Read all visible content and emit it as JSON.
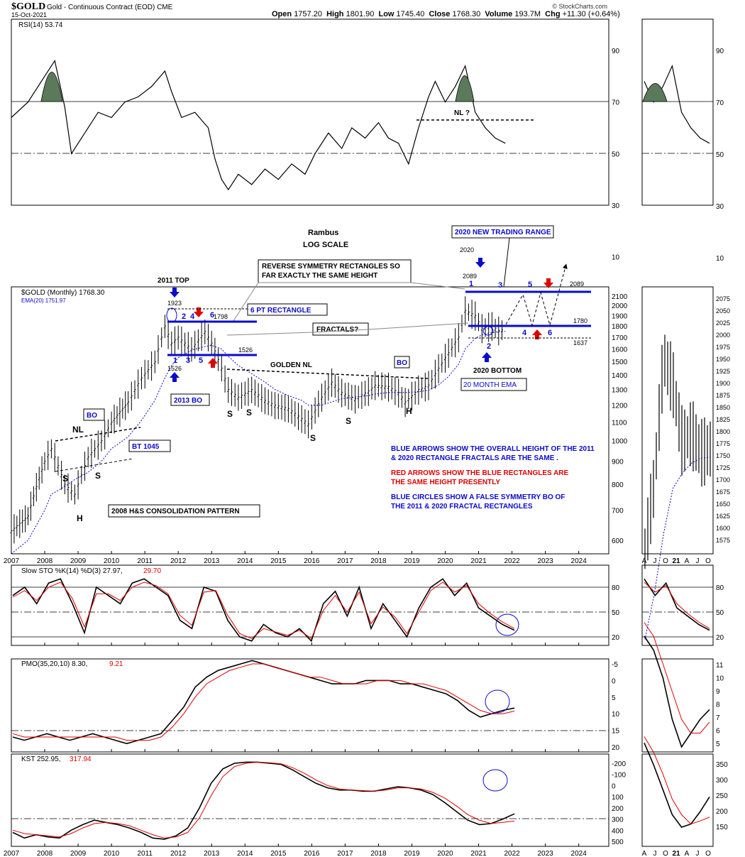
{
  "header": {
    "symbol": "$GOLD",
    "name": "Gold - Continuous Contract (EOD)",
    "exchange": "CME",
    "date": "15-Oct-2021",
    "credit": "© StockCharts.com",
    "quote": {
      "open_label": "Open",
      "open": "1757.20",
      "high_label": "High",
      "high": "1801.90",
      "low_label": "Low",
      "low": "1745.40",
      "close_label": "Close",
      "close": "1768.30",
      "volume_label": "Volume",
      "volume": "193.7M",
      "chg_label": "Chg",
      "chg": "+11.30 (+0.64%)"
    }
  },
  "colors": {
    "blue": "#0a0acc",
    "red": "#e00000",
    "rsi_fill": "#5b7a5b",
    "grid": "#000000",
    "signal": "#e00000"
  },
  "chart_data": [
    {
      "type": "line",
      "panel": "RSI",
      "title": "RSI(14) 53.74",
      "value": 53.74,
      "ylim": [
        0,
        100
      ],
      "ticks": [
        90,
        70,
        50,
        30,
        10
      ],
      "x": [
        2007.0,
        2007.5,
        2008.0,
        2008.3,
        2008.6,
        2008.8,
        2009.2,
        2009.6,
        2010.0,
        2010.4,
        2010.8,
        2011.2,
        2011.6,
        2011.8,
        2012.1,
        2012.5,
        2012.9,
        2013.1,
        2013.3,
        2013.5,
        2013.8,
        2014.2,
        2014.6,
        2015.0,
        2015.4,
        2015.8,
        2016.1,
        2016.5,
        2016.9,
        2017.2,
        2017.6,
        2018.0,
        2018.3,
        2018.6,
        2018.9,
        2019.2,
        2019.5,
        2019.7,
        2020.0,
        2020.3,
        2020.6,
        2020.9,
        2021.2,
        2021.5,
        2021.8
      ],
      "values": [
        64,
        70,
        80,
        86,
        68,
        50,
        58,
        66,
        64,
        70,
        72,
        76,
        82,
        74,
        64,
        66,
        60,
        48,
        40,
        36,
        42,
        38,
        44,
        40,
        46,
        42,
        50,
        58,
        52,
        60,
        56,
        62,
        56,
        54,
        46,
        60,
        72,
        78,
        70,
        76,
        84,
        66,
        60,
        56,
        54
      ],
      "annotations": [
        "NL ?"
      ]
    },
    {
      "type": "line",
      "panel": "price",
      "title": "$GOLD (Monthly) 1768.30",
      "subtitle": "EMA(20) 1751.97",
      "scale": "log",
      "ylim": [
        560,
        2200
      ],
      "ticks": [
        600,
        700,
        800,
        900,
        1000,
        1100,
        1200,
        1300,
        1400,
        1500,
        1600,
        1700,
        1800,
        1900,
        2000,
        2100
      ],
      "x": [
        2007.0,
        2007.5,
        2008.0,
        2008.2,
        2008.6,
        2008.9,
        2009.3,
        2009.7,
        2010.0,
        2010.5,
        2010.9,
        2011.3,
        2011.6,
        2011.8,
        2012.0,
        2012.4,
        2012.8,
        2013.0,
        2013.3,
        2013.5,
        2013.8,
        2014.2,
        2014.6,
        2014.9,
        2015.3,
        2015.7,
        2015.9,
        2016.3,
        2016.6,
        2016.9,
        2017.3,
        2017.7,
        2017.9,
        2018.3,
        2018.6,
        2018.8,
        2019.2,
        2019.5,
        2019.8,
        2020.1,
        2020.4,
        2020.6,
        2020.9,
        2021.1,
        2021.4,
        2021.6,
        2021.8
      ],
      "values": [
        630,
        680,
        900,
        960,
        800,
        760,
        920,
        1000,
        1100,
        1220,
        1380,
        1500,
        1800,
        1650,
        1700,
        1600,
        1750,
        1650,
        1450,
        1300,
        1250,
        1300,
        1230,
        1200,
        1180,
        1120,
        1090,
        1250,
        1350,
        1280,
        1240,
        1290,
        1330,
        1320,
        1280,
        1220,
        1300,
        1330,
        1450,
        1570,
        1700,
        1950,
        1900,
        1780,
        1800,
        1760,
        1768
      ],
      "ema": [
        560,
        600,
        700,
        760,
        790,
        820,
        850,
        900,
        960,
        1020,
        1110,
        1230,
        1380,
        1470,
        1530,
        1590,
        1620,
        1630,
        1600,
        1540,
        1470,
        1410,
        1350,
        1300,
        1260,
        1230,
        1200,
        1200,
        1220,
        1240,
        1250,
        1260,
        1270,
        1280,
        1280,
        1280,
        1285,
        1295,
        1330,
        1390,
        1480,
        1600,
        1690,
        1720,
        1740,
        1750,
        1752
      ],
      "xticks": [
        "2007",
        "2008",
        "2009",
        "2010",
        "2011",
        "2012",
        "2013",
        "2014",
        "2015",
        "2016",
        "2017",
        "2018",
        "2019",
        "2020",
        "2021",
        "2022",
        "2023",
        "2024"
      ],
      "annotations": [
        "Rambus",
        "LOG SCALE",
        "2011 TOP",
        "1923",
        "1798",
        "1526",
        "1526",
        "2020",
        "2089",
        "2089",
        "1780",
        "1637",
        "NL",
        "H",
        "S",
        "S",
        "S",
        "S",
        "S",
        "S",
        "H",
        "GOLDEN NL",
        "2020 BOTTOM"
      ]
    },
    {
      "type": "line",
      "panel": "Slow STO",
      "title": "Slow STO %K(14) %D(3) 27.97, 29.70",
      "ylim": [
        0,
        100
      ],
      "ticks": [
        80,
        50,
        20
      ],
      "series": [
        {
          "name": "%K",
          "values": [
            70,
            80,
            60,
            85,
            90,
            60,
            25,
            80,
            70,
            60,
            85,
            90,
            80,
            70,
            40,
            30,
            80,
            75,
            40,
            20,
            15,
            35,
            25,
            20,
            30,
            15,
            60,
            75,
            45,
            80,
            30,
            60,
            40,
            20,
            55,
            80,
            90,
            70,
            85,
            55,
            45,
            35,
            28
          ]
        },
        {
          "name": "%D",
          "values": [
            68,
            76,
            64,
            80,
            86,
            66,
            32,
            72,
            72,
            64,
            80,
            86,
            82,
            72,
            46,
            34,
            74,
            76,
            46,
            24,
            18,
            30,
            26,
            22,
            28,
            18,
            52,
            70,
            50,
            74,
            36,
            56,
            44,
            24,
            50,
            76,
            86,
            74,
            82,
            60,
            48,
            38,
            30
          ]
        }
      ]
    },
    {
      "type": "line",
      "panel": "PMO",
      "title": "PMO(35,20,10) 8.30, 9.21",
      "ylim": [
        -6,
        21
      ],
      "ticks": [
        20,
        15,
        10,
        5,
        0,
        -5
      ],
      "series": [
        {
          "name": "PMO",
          "values": [
            17,
            18,
            17,
            16,
            17,
            18,
            17,
            16,
            17,
            18,
            19,
            18,
            17,
            16,
            12,
            8,
            2,
            -1,
            -3,
            -4,
            -5,
            -6,
            -5,
            -4,
            -3,
            -2,
            -1,
            0,
            1,
            1,
            1,
            0,
            0,
            0,
            1,
            1,
            2,
            3,
            4,
            6,
            9,
            11,
            10,
            9,
            8.3
          ]
        },
        {
          "name": "Signal",
          "values": [
            16,
            17,
            17,
            17,
            17,
            17,
            17,
            17,
            17,
            17,
            18,
            18,
            18,
            17,
            14,
            10,
            5,
            1,
            -1,
            -3,
            -4,
            -5,
            -5,
            -4,
            -3,
            -2,
            -1,
            -1,
            0,
            1,
            1,
            1,
            0,
            0,
            0,
            1,
            1,
            2,
            3,
            5,
            7,
            9,
            10,
            10,
            9.2
          ]
        }
      ]
    },
    {
      "type": "line",
      "panel": "KST",
      "title": "KST 252.95, 317.94",
      "ylim": [
        -220,
        540
      ],
      "ticks": [
        500,
        400,
        300,
        200,
        100,
        0,
        -100,
        -200
      ],
      "series": [
        {
          "name": "KST",
          "values": [
            420,
            470,
            440,
            460,
            470,
            400,
            350,
            310,
            330,
            350,
            380,
            420,
            470,
            480,
            450,
            380,
            200,
            -20,
            -150,
            -200,
            -210,
            -210,
            -200,
            -190,
            -140,
            -80,
            -20,
            20,
            40,
            40,
            50,
            50,
            30,
            10,
            20,
            40,
            80,
            150,
            230,
            310,
            350,
            340,
            300,
            253
          ]
        },
        {
          "name": "Signal",
          "values": [
            400,
            430,
            440,
            450,
            460,
            430,
            380,
            340,
            330,
            340,
            360,
            400,
            440,
            470,
            460,
            420,
            290,
            90,
            -80,
            -170,
            -200,
            -210,
            -205,
            -195,
            -160,
            -110,
            -50,
            0,
            30,
            40,
            45,
            50,
            40,
            20,
            20,
            30,
            60,
            110,
            180,
            260,
            310,
            340,
            330,
            318
          ]
        }
      ]
    }
  ],
  "right_panel": {
    "months": [
      "A",
      "J",
      "O",
      "21",
      "A",
      "J",
      "O"
    ],
    "rsi_ticks": [
      "90",
      "70",
      "50",
      "30",
      "10"
    ],
    "price_ticks": [
      "2075",
      "2050",
      "2025",
      "2000",
      "1975",
      "1950",
      "1925",
      "1900",
      "1875",
      "1850",
      "1825",
      "1800",
      "1775",
      "1750",
      "1725",
      "1700",
      "1675",
      "1650",
      "1625",
      "1600",
      "1575"
    ],
    "sto_ticks": [
      "80",
      "50",
      "20"
    ],
    "pmo_ticks": [
      "11",
      "10",
      "9",
      "8",
      "7",
      "6",
      "5"
    ],
    "kst_ticks": [
      "350",
      "300",
      "250",
      "200",
      "150"
    ]
  },
  "labels": {
    "rambus": "Rambus",
    "log_scale": "LOG SCALE",
    "new_range": "2020 NEW TRADING RANGE",
    "reverse_sym_1": "REVERSE SYMMETRY RECTANGLES SO",
    "reverse_sym_2": "FAR EXACTLY THE SAME HEIGHT",
    "top_2011": "2011 TOP",
    "six_pt": "6 PT  RECTANGLE",
    "fractals": "FRACTALS?",
    "golden_nl": "GOLDEN NL",
    "bo": "BO",
    "bo2": "BO",
    "bt1045": "BT 1045",
    "bo2013": "2013 BO",
    "ema20": "20 MONTH EMA",
    "bottom2020": "2020 BOTTOM",
    "hs2008": "2008 H&S CONSOLIDATION PATTERN",
    "nl": "NL",
    "nl_q": "NL ?",
    "blue_note_1": "BLUE ARROWS SHOW THE OVERALL HEIGHT OF THE 2011",
    "blue_note_2": "& 2020 RECTANGLE FRACTALS ARE THE SAME .",
    "red_note_1": "RED ARROWS SHOW THE BLUE RECTANGLES ARE",
    "red_note_2": "THE SAME HEIGHT PRESENTLY",
    "circle_note_1": "BLUE CIRCLES SHOW A FALSE SYMMETRY BO OF",
    "circle_note_2": "THE  2011 & 2020 FRACTAL RECTANGLES",
    "v1923": "1923",
    "v1798": "1798",
    "v1526a": "1526",
    "v1526b": "1526",
    "v2020": "2020",
    "v2089a": "2089",
    "v2089b": "2089",
    "v1780": "1780",
    "v1637": "1637",
    "price_title": "$GOLD (Monthly) 1768.30",
    "ema_title": "EMA(20) 1751.97",
    "rsi_title": "RSI(14) 53.74",
    "sto_title": "Slow STO %K(14) %D(3) 27.97,",
    "sto_d": "29.70",
    "pmo_title": "PMO(35,20,10) 8.30,",
    "pmo_sig": "9.21",
    "kst_title": "KST 252.95,",
    "kst_sig": "317.94"
  }
}
